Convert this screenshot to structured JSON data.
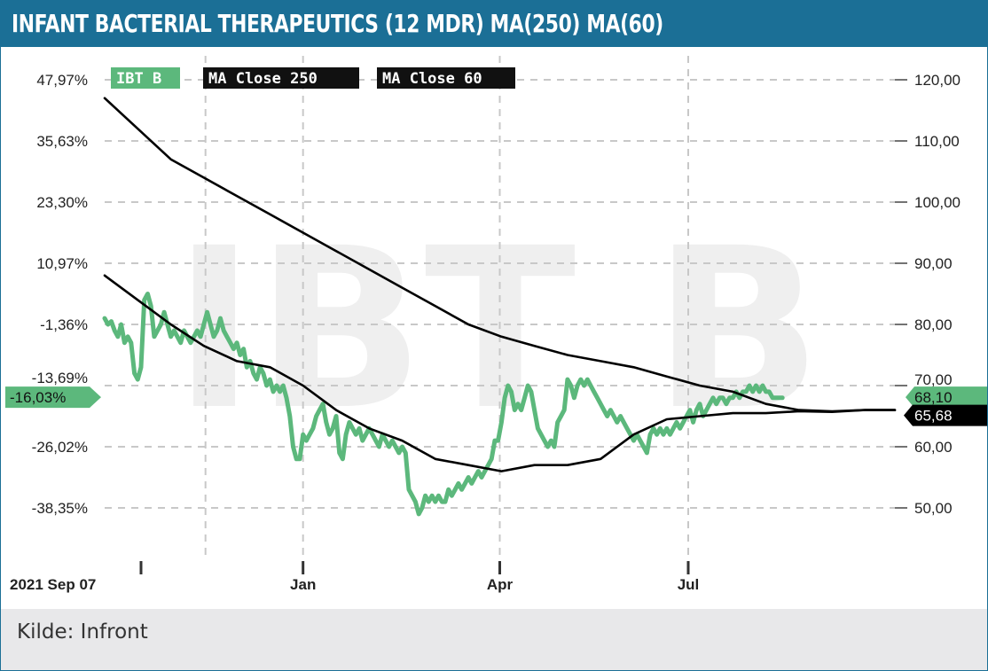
{
  "header": {
    "title": "INFANT BACTERIAL THERAPEUTICS (12 MDR) MA(250) MA(60)"
  },
  "footer": {
    "source": "Kilde: Infront"
  },
  "colors": {
    "accent": "#1b6f96",
    "price": "#5cb87c",
    "ma": "#000000",
    "footer_bg": "#e8e8ea"
  },
  "chart_data": {
    "type": "line",
    "watermark": "IBT B",
    "x_ticks": [
      {
        "label": "2021 Sep 07",
        "x": 0
      },
      {
        "label": "Jan",
        "x": 120
      },
      {
        "label": "Apr",
        "x": 239
      },
      {
        "label": "Jul",
        "x": 353
      }
    ],
    "xlim": [
      0,
      478
    ],
    "ylim": [
      42,
      124
    ],
    "y_ticks_right": [
      "120,00",
      "110,00",
      "100,00",
      "90,00",
      "80,00",
      "70,00",
      "60,00",
      "50,00"
    ],
    "y_ticks_left": [
      "47,97%",
      "35,63%",
      "23,30%",
      "10,97%",
      "-1,36%",
      "-13,69%",
      "-26,02%",
      "-38,35%"
    ],
    "badges": {
      "left_pct": "-16,03%",
      "price": "68,10",
      "ma": "65,68"
    },
    "series": [
      {
        "name": "IBT B",
        "color": "#5cb87c",
        "points": [
          [
            0,
            81
          ],
          [
            2,
            80
          ],
          [
            4,
            80.5
          ],
          [
            6,
            79
          ],
          [
            8,
            78
          ],
          [
            10,
            80
          ],
          [
            12,
            77
          ],
          [
            14,
            78
          ],
          [
            16,
            77
          ],
          [
            18,
            72
          ],
          [
            20,
            71
          ],
          [
            22,
            73
          ],
          [
            24,
            84
          ],
          [
            26,
            85
          ],
          [
            28,
            83
          ],
          [
            30,
            78
          ],
          [
            32,
            79
          ],
          [
            34,
            80
          ],
          [
            36,
            82
          ],
          [
            38,
            80
          ],
          [
            40,
            78
          ],
          [
            42,
            79
          ],
          [
            44,
            78
          ],
          [
            46,
            77
          ],
          [
            48,
            79
          ],
          [
            50,
            78
          ],
          [
            52,
            77
          ],
          [
            54,
            78
          ],
          [
            56,
            79
          ],
          [
            58,
            78
          ],
          [
            60,
            80
          ],
          [
            62,
            82
          ],
          [
            64,
            80
          ],
          [
            66,
            78
          ],
          [
            68,
            79
          ],
          [
            70,
            81
          ],
          [
            72,
            79
          ],
          [
            74,
            78
          ],
          [
            76,
            77
          ],
          [
            78,
            76
          ],
          [
            80,
            77
          ],
          [
            82,
            75
          ],
          [
            84,
            76
          ],
          [
            86,
            73
          ],
          [
            88,
            74
          ],
          [
            90,
            72
          ],
          [
            92,
            71
          ],
          [
            94,
            73
          ],
          [
            96,
            72
          ],
          [
            98,
            70
          ],
          [
            100,
            71
          ],
          [
            102,
            69
          ],
          [
            104,
            70
          ],
          [
            106,
            69
          ],
          [
            108,
            70
          ],
          [
            110,
            68
          ],
          [
            112,
            65
          ],
          [
            114,
            60
          ],
          [
            116,
            58
          ],
          [
            118,
            58
          ],
          [
            120,
            62
          ],
          [
            122,
            61
          ],
          [
            124,
            62
          ],
          [
            126,
            63
          ],
          [
            128,
            65
          ],
          [
            130,
            66
          ],
          [
            132,
            67
          ],
          [
            134,
            64
          ],
          [
            136,
            62
          ],
          [
            138,
            63
          ],
          [
            140,
            65
          ],
          [
            142,
            59
          ],
          [
            144,
            58
          ],
          [
            146,
            62
          ],
          [
            148,
            64
          ],
          [
            150,
            63
          ],
          [
            152,
            62
          ],
          [
            154,
            63
          ],
          [
            156,
            61
          ],
          [
            158,
            62
          ],
          [
            160,
            63
          ],
          [
            162,
            62
          ],
          [
            164,
            61
          ],
          [
            166,
            60
          ],
          [
            168,
            62
          ],
          [
            170,
            61
          ],
          [
            172,
            60
          ],
          [
            174,
            61
          ],
          [
            176,
            60
          ],
          [
            178,
            59
          ],
          [
            180,
            60
          ],
          [
            182,
            59
          ],
          [
            184,
            53
          ],
          [
            186,
            52
          ],
          [
            188,
            51
          ],
          [
            190,
            49
          ],
          [
            192,
            50
          ],
          [
            194,
            52
          ],
          [
            196,
            51
          ],
          [
            198,
            52
          ],
          [
            200,
            51
          ],
          [
            202,
            52
          ],
          [
            204,
            51
          ],
          [
            206,
            51
          ],
          [
            208,
            53
          ],
          [
            210,
            52
          ],
          [
            212,
            53
          ],
          [
            214,
            54
          ],
          [
            216,
            53
          ],
          [
            218,
            54
          ],
          [
            220,
            55
          ],
          [
            222,
            54
          ],
          [
            224,
            55
          ],
          [
            226,
            56
          ],
          [
            228,
            55
          ],
          [
            230,
            56
          ],
          [
            232,
            57
          ],
          [
            234,
            58
          ],
          [
            236,
            61
          ],
          [
            238,
            61
          ],
          [
            240,
            64
          ],
          [
            242,
            68
          ],
          [
            244,
            70
          ],
          [
            246,
            69
          ],
          [
            248,
            66
          ],
          [
            250,
            67
          ],
          [
            252,
            66
          ],
          [
            254,
            68
          ],
          [
            256,
            70
          ],
          [
            258,
            69
          ],
          [
            260,
            66
          ],
          [
            262,
            63
          ],
          [
            264,
            62
          ],
          [
            266,
            61
          ],
          [
            268,
            60
          ],
          [
            270,
            61
          ],
          [
            272,
            60
          ],
          [
            274,
            64
          ],
          [
            276,
            65
          ],
          [
            278,
            66
          ],
          [
            280,
            71
          ],
          [
            282,
            70
          ],
          [
            284,
            68
          ],
          [
            286,
            70
          ],
          [
            288,
            71
          ],
          [
            290,
            70
          ],
          [
            292,
            71
          ],
          [
            294,
            70
          ],
          [
            296,
            69
          ],
          [
            298,
            68
          ],
          [
            300,
            67
          ],
          [
            302,
            66
          ],
          [
            304,
            65
          ],
          [
            306,
            66
          ],
          [
            308,
            65
          ],
          [
            310,
            64
          ],
          [
            312,
            65
          ],
          [
            314,
            64
          ],
          [
            316,
            63
          ],
          [
            318,
            62
          ],
          [
            320,
            61
          ],
          [
            322,
            62
          ],
          [
            324,
            61
          ],
          [
            326,
            60
          ],
          [
            328,
            59
          ],
          [
            330,
            62
          ],
          [
            332,
            63
          ],
          [
            334,
            62
          ],
          [
            336,
            63
          ],
          [
            338,
            62
          ],
          [
            340,
            63
          ],
          [
            342,
            62
          ],
          [
            344,
            63
          ],
          [
            346,
            64
          ],
          [
            348,
            63
          ],
          [
            350,
            64
          ],
          [
            352,
            65
          ],
          [
            354,
            66
          ],
          [
            356,
            64
          ],
          [
            358,
            66
          ],
          [
            360,
            67
          ],
          [
            362,
            65
          ],
          [
            364,
            66
          ],
          [
            366,
            67
          ],
          [
            368,
            68
          ],
          [
            370,
            67
          ],
          [
            372,
            68
          ],
          [
            374,
            68
          ],
          [
            376,
            67
          ],
          [
            378,
            68
          ],
          [
            380,
            68
          ],
          [
            382,
            69
          ],
          [
            384,
            68
          ],
          [
            386,
            69
          ],
          [
            388,
            69
          ],
          [
            390,
            70
          ],
          [
            392,
            69
          ],
          [
            394,
            70
          ],
          [
            396,
            69
          ],
          [
            398,
            70
          ],
          [
            400,
            69
          ],
          [
            402,
            69
          ],
          [
            404,
            68
          ],
          [
            406,
            68
          ],
          [
            408,
            68
          ],
          [
            410,
            68
          ]
        ]
      },
      {
        "name": "MA Close 250",
        "color": "#000000",
        "points": [
          [
            0,
            117
          ],
          [
            20,
            112
          ],
          [
            40,
            107
          ],
          [
            60,
            104
          ],
          [
            80,
            101
          ],
          [
            100,
            98
          ],
          [
            120,
            95
          ],
          [
            140,
            92
          ],
          [
            160,
            89
          ],
          [
            180,
            86
          ],
          [
            200,
            83
          ],
          [
            220,
            80
          ],
          [
            240,
            78
          ],
          [
            260,
            76.5
          ],
          [
            280,
            75
          ],
          [
            300,
            74
          ],
          [
            320,
            73
          ],
          [
            340,
            71.5
          ],
          [
            360,
            70
          ],
          [
            380,
            69
          ],
          [
            400,
            67
          ],
          [
            420,
            66
          ],
          [
            440,
            65.8
          ],
          [
            460,
            66
          ],
          [
            478,
            66
          ]
        ]
      },
      {
        "name": "MA Close 60",
        "color": "#000000",
        "points": [
          [
            0,
            88
          ],
          [
            20,
            84
          ],
          [
            40,
            80
          ],
          [
            60,
            76.5
          ],
          [
            80,
            74
          ],
          [
            100,
            73
          ],
          [
            120,
            70
          ],
          [
            140,
            66
          ],
          [
            160,
            63
          ],
          [
            180,
            61
          ],
          [
            200,
            58
          ],
          [
            220,
            57
          ],
          [
            240,
            56
          ],
          [
            260,
            57
          ],
          [
            280,
            57
          ],
          [
            300,
            58
          ],
          [
            320,
            62
          ],
          [
            340,
            64.5
          ],
          [
            360,
            65
          ],
          [
            380,
            65.5
          ],
          [
            400,
            65.5
          ],
          [
            420,
            65.8
          ],
          [
            440,
            65.7
          ],
          [
            460,
            66
          ],
          [
            478,
            66
          ]
        ]
      }
    ]
  }
}
